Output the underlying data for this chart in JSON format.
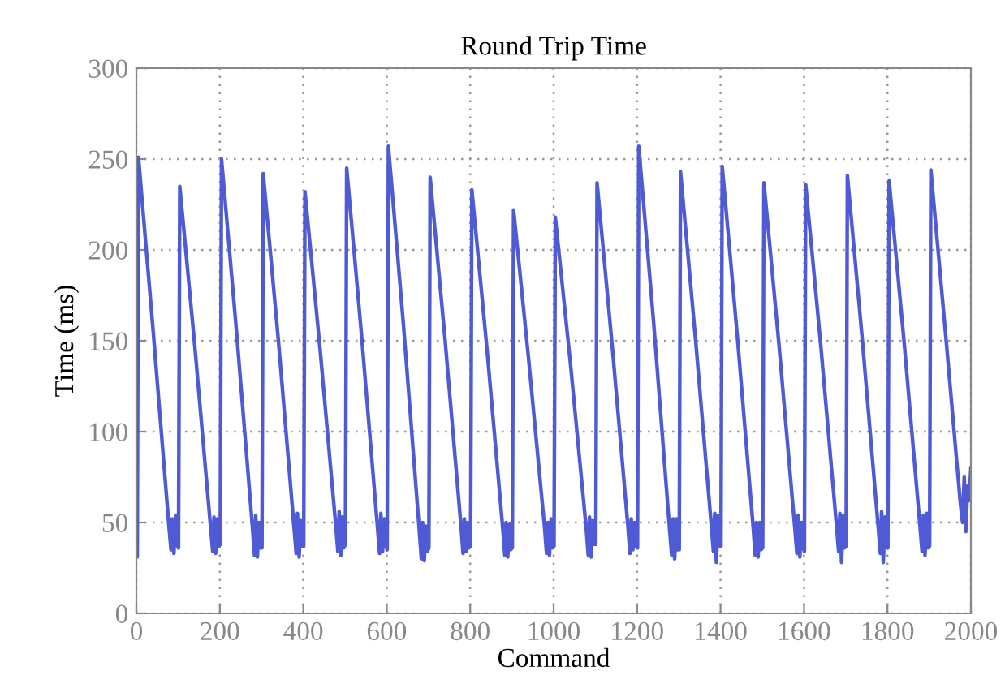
{
  "chart_data": {
    "type": "line",
    "title": "Round Trip Time",
    "xlabel": "Command",
    "ylabel": "Time (ms)",
    "xlim": [
      0,
      2000
    ],
    "xticks": [
      0,
      200,
      400,
      600,
      800,
      1000,
      1200,
      1400,
      1600,
      1800,
      2000
    ],
    "ylim": [
      0,
      300
    ],
    "yticks": [
      0,
      50,
      100,
      150,
      200,
      250,
      300
    ],
    "grid": true,
    "legend": false,
    "marker": "none",
    "line_style": "solid",
    "series": [
      {
        "color": "#4f5bd5",
        "x": [
          0,
          2,
          5,
          40,
          78,
          83,
          86,
          90,
          94,
          97,
          101,
          104,
          140,
          178,
          183,
          186,
          190,
          194,
          197,
          201,
          204,
          240,
          278,
          283,
          286,
          290,
          294,
          297,
          301,
          304,
          340,
          378,
          383,
          386,
          390,
          394,
          397,
          401,
          404,
          440,
          478,
          483,
          486,
          490,
          494,
          497,
          501,
          504,
          540,
          578,
          583,
          586,
          590,
          594,
          597,
          601,
          604,
          640,
          678,
          683,
          686,
          690,
          694,
          697,
          701,
          704,
          740,
          778,
          783,
          786,
          790,
          794,
          797,
          801,
          804,
          840,
          878,
          883,
          886,
          890,
          894,
          897,
          901,
          904,
          940,
          978,
          983,
          986,
          990,
          994,
          997,
          1001,
          1004,
          1040,
          1078,
          1083,
          1086,
          1090,
          1094,
          1097,
          1101,
          1104,
          1140,
          1178,
          1183,
          1186,
          1190,
          1194,
          1197,
          1201,
          1204,
          1240,
          1278,
          1283,
          1286,
          1290,
          1294,
          1297,
          1301,
          1304,
          1340,
          1378,
          1383,
          1386,
          1390,
          1394,
          1397,
          1401,
          1404,
          1440,
          1478,
          1483,
          1486,
          1490,
          1494,
          1497,
          1501,
          1504,
          1540,
          1578,
          1583,
          1586,
          1590,
          1594,
          1597,
          1601,
          1604,
          1640,
          1678,
          1683,
          1686,
          1690,
          1694,
          1697,
          1701,
          1704,
          1740,
          1778,
          1783,
          1786,
          1790,
          1794,
          1797,
          1801,
          1804,
          1840,
          1878,
          1883,
          1886,
          1890,
          1894,
          1897,
          1901,
          1904,
          1940,
          1975,
          1980,
          1984,
          1988,
          1992,
          1996,
          2000
        ],
        "values": [
          45,
          31,
          251,
          156,
          48,
          35,
          52,
          33,
          54,
          38,
          36,
          235,
          147,
          47,
          34,
          53,
          33,
          52,
          37,
          38,
          250,
          155,
          48,
          32,
          54,
          31,
          50,
          36,
          36,
          242,
          151,
          47,
          33,
          55,
          31,
          51,
          37,
          37,
          232,
          146,
          48,
          34,
          56,
          32,
          53,
          36,
          38,
          245,
          152,
          47,
          33,
          55,
          34,
          52,
          38,
          35,
          257,
          159,
          46,
          30,
          50,
          29,
          48,
          34,
          36,
          240,
          150,
          48,
          33,
          52,
          34,
          50,
          36,
          37,
          233,
          146,
          47,
          32,
          50,
          31,
          49,
          35,
          36,
          222,
          140,
          48,
          33,
          50,
          32,
          52,
          36,
          37,
          218,
          138,
          47,
          32,
          53,
          31,
          51,
          38,
          38,
          237,
          148,
          48,
          33,
          52,
          35,
          50,
          37,
          36,
          257,
          159,
          46,
          32,
          52,
          30,
          52,
          35,
          35,
          243,
          151,
          48,
          34,
          55,
          28,
          54,
          37,
          37,
          246,
          153,
          48,
          32,
          50,
          31,
          50,
          35,
          36,
          237,
          148,
          47,
          33,
          54,
          31,
          50,
          37,
          34,
          236,
          148,
          48,
          34,
          55,
          28,
          54,
          36,
          37,
          241,
          150,
          47,
          33,
          56,
          28,
          53,
          38,
          36,
          238,
          149,
          48,
          34,
          54,
          32,
          55,
          36,
          37,
          244,
          152,
          60,
          50,
          75,
          45,
          70,
          62,
          80
        ]
      }
    ]
  }
}
